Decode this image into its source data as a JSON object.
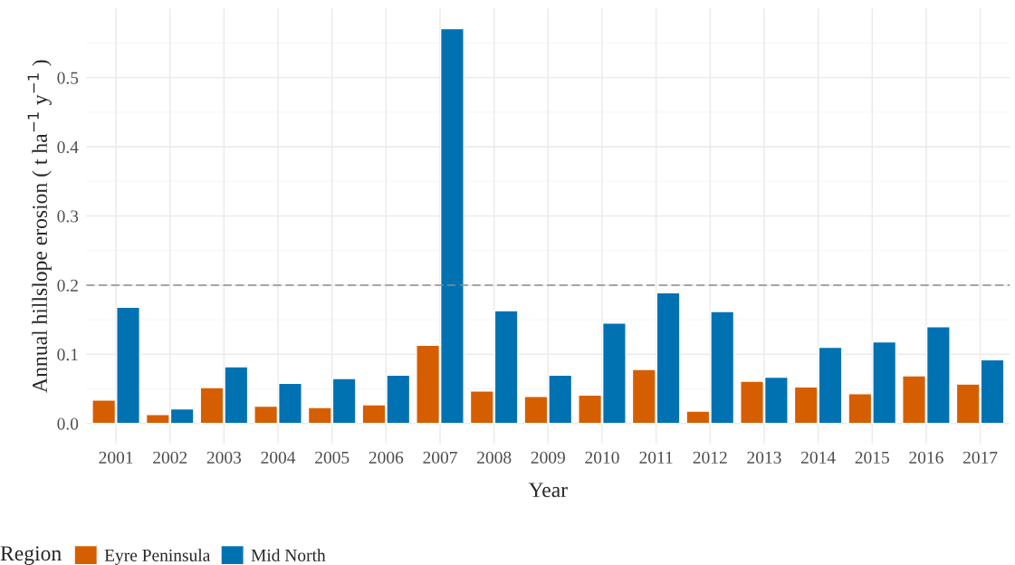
{
  "chart_data": {
    "type": "bar",
    "xlabel": "Year",
    "ylabel": "Annual hillslope erosion ( t ha$^{−1}$ y$^{−1}$ )",
    "legend_title": "Region",
    "categories": [
      "2001",
      "2002",
      "2003",
      "2004",
      "2005",
      "2006",
      "2007",
      "2008",
      "2009",
      "2010",
      "2011",
      "2012",
      "2013",
      "2014",
      "2015",
      "2016",
      "2017"
    ],
    "series": [
      {
        "name": "Eyre Peninsula",
        "color": "#d55e00",
        "values": [
          0.034,
          0.013,
          0.052,
          0.025,
          0.023,
          0.027,
          0.113,
          0.047,
          0.039,
          0.041,
          0.078,
          0.018,
          0.061,
          0.053,
          0.043,
          0.069,
          0.057
        ]
      },
      {
        "name": "Mid North",
        "color": "#0072b2",
        "values": [
          0.168,
          0.021,
          0.082,
          0.058,
          0.065,
          0.07,
          0.571,
          0.163,
          0.07,
          0.145,
          0.189,
          0.162,
          0.067,
          0.11,
          0.118,
          0.14,
          0.092
        ]
      }
    ],
    "ylim": [
      -0.029,
      0.6
    ],
    "yticks": [
      {
        "value": 0,
        "label": "0.0"
      },
      0.1,
      0.2,
      0.3,
      0.4,
      0.5
    ],
    "ref_lines": [
      {
        "axis": "y",
        "value": 0.2,
        "color": "#8c8c8c",
        "line_style": "dashed"
      }
    ],
    "grid": true,
    "legend": "bottom"
  }
}
